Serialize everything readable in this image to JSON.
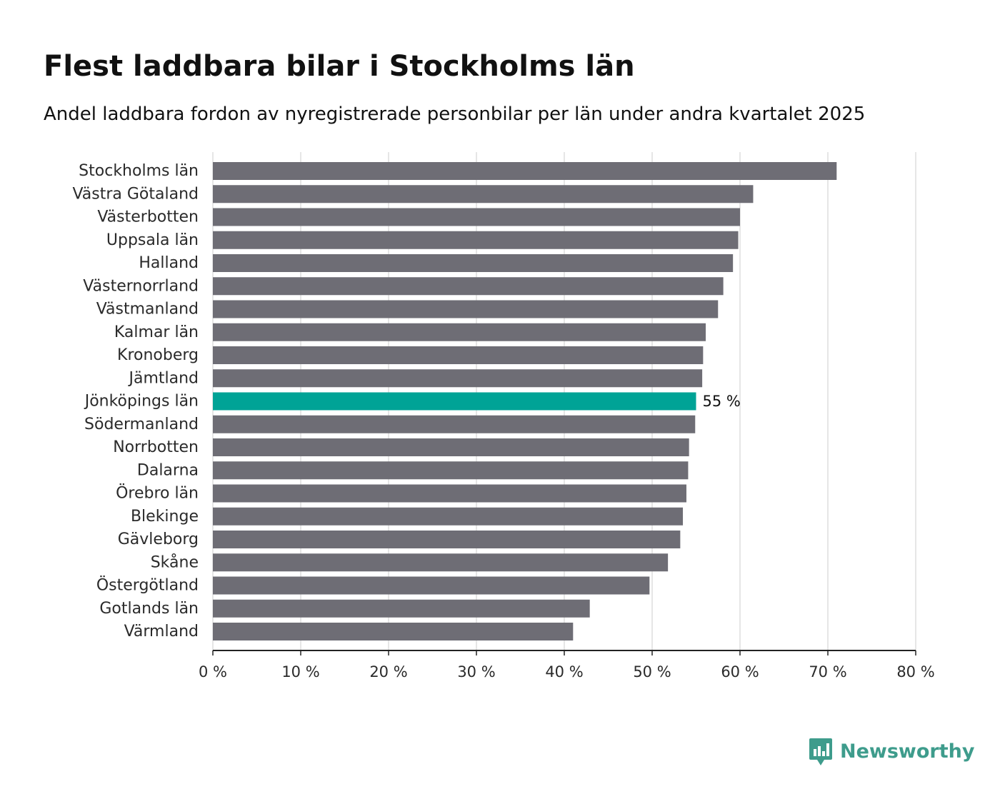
{
  "header": {
    "title": "Flest laddbara bilar i Stockholms län",
    "subtitle": "Andel laddbara fordon av nyregistrerade personbilar per län under andra kvartalet 2025"
  },
  "brand": {
    "name": "Newsworthy",
    "color": "#3e9c8c"
  },
  "colors": {
    "bar_default": "#6e6d75",
    "bar_highlight": "#00a396",
    "grid": "#dddddd",
    "axis": "#222222",
    "text": "#2a2a2a"
  },
  "chart_data": {
    "type": "bar",
    "orientation": "horizontal",
    "title": "Flest laddbara bilar i Stockholms län",
    "subtitle": "Andel laddbara fordon av nyregistrerade personbilar per län under andra kvartalet 2025",
    "xlabel": "",
    "ylabel": "",
    "xlim": [
      0,
      80
    ],
    "xticks": [
      0,
      10,
      20,
      30,
      40,
      50,
      60,
      70,
      80
    ],
    "xtick_labels": [
      "0 %",
      "10 %",
      "20 %",
      "30 %",
      "40 %",
      "50 %",
      "60 %",
      "70 %",
      "80 %"
    ],
    "grid": "vertical",
    "legend": "none",
    "categories": [
      "Stockholms län",
      "Västra Götaland",
      "Västerbotten",
      "Uppsala län",
      "Halland",
      "Västernorrland",
      "Västmanland",
      "Kalmar län",
      "Kronoberg",
      "Jämtland",
      "Jönköpings län",
      "Södermanland",
      "Norrbotten",
      "Dalarna",
      "Örebro län",
      "Blekinge",
      "Gävleborg",
      "Skåne",
      "Östergötland",
      "Gotlands län",
      "Värmland"
    ],
    "values": [
      71.0,
      61.5,
      60.0,
      59.8,
      59.2,
      58.1,
      57.5,
      56.1,
      55.8,
      55.7,
      55.0,
      54.9,
      54.2,
      54.1,
      53.9,
      53.5,
      53.2,
      51.8,
      49.7,
      42.9,
      41.0
    ],
    "highlight_index": 10,
    "data_labels": [
      {
        "index": 10,
        "text": "55 %"
      }
    ]
  }
}
